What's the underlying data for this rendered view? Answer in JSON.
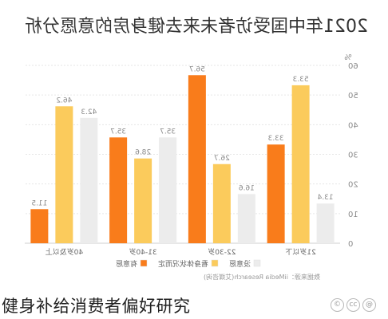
{
  "chart_data": {
    "type": "bar",
    "title": "2021年中国受访者未来去健身房的意愿分析",
    "categories": [
      "21岁以下",
      "22-30岁",
      "31-40岁",
      "40岁及以上"
    ],
    "series": [
      {
        "name": "没意愿",
        "color": "#ececec",
        "values": [
          13.4,
          16.6,
          35.7,
          42.3
        ]
      },
      {
        "name": "看身体状况而定",
        "color": "#fbcb5c",
        "values": [
          53.3,
          26.7,
          28.6,
          46.2
        ]
      },
      {
        "name": "有意愿",
        "color": "#f97c1b",
        "values": [
          33.3,
          56.7,
          35.7,
          11.5
        ]
      }
    ],
    "value_labels": {
      "没意愿": [
        "13.4",
        "16.6",
        "35.7",
        "42.3"
      ],
      "看身体状况而定": [
        "53.3",
        "26.7",
        "28.6",
        "46.2"
      ],
      "有意愿": [
        "33.3",
        "56.7",
        "35.7",
        "11.5"
      ]
    },
    "ylabel": "%",
    "ylim": [
      0,
      60
    ],
    "yticks": [
      0,
      10,
      20,
      30,
      40,
      50,
      60
    ],
    "ytick_labels": [
      "0",
      "10",
      "20",
      "30",
      "40",
      "50",
      "60"
    ],
    "grid": true,
    "legend_position": "bottom",
    "source": "数据来源：iiMedia Research(艾媒咨询)"
  },
  "caption": {
    "text": "健身补给消费者偏好研究",
    "icons": [
      "copyright-icon",
      "cc-icon",
      "at-icon"
    ]
  }
}
